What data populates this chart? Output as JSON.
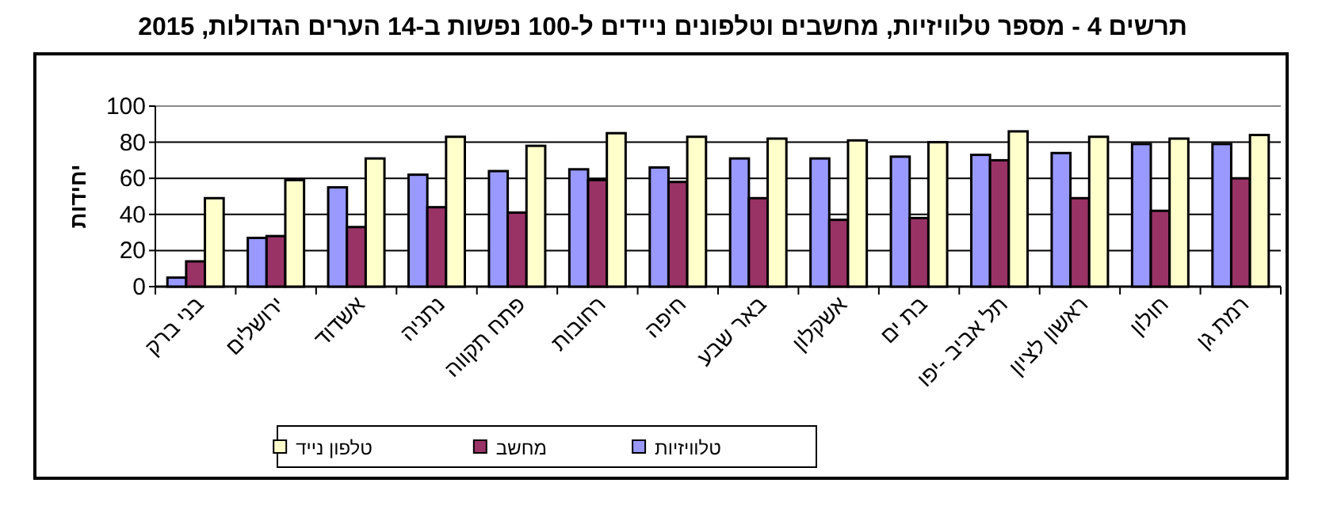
{
  "chart_data": {
    "type": "bar",
    "title": "תרשים 4 - מספר טלוויזיות, מחשבים וטלפונים ניידים ל-100 נפשות ב-14 הערים הגדולות, 2015",
    "ylabel": "יחידות",
    "categories": [
      "בני ברק",
      "ירושלים",
      "אשדוד",
      "נתניה",
      "פתח תקווה",
      "רחובות",
      "חיפה",
      "באר שבע",
      "אשקלון",
      "בת ים",
      "תל אביב -יפו",
      "ראשון לציון",
      "חולון",
      "רמת גן"
    ],
    "series": [
      {
        "name": "טלוויזיות",
        "color": "#9999ff",
        "values": [
          5,
          27,
          55,
          62,
          64,
          65,
          66,
          71,
          71,
          72,
          73,
          74,
          79,
          79
        ]
      },
      {
        "name": "מחשב",
        "color": "#993366",
        "values": [
          14,
          28,
          33,
          44,
          41,
          59,
          58,
          49,
          37,
          38,
          70,
          49,
          42,
          60
        ]
      },
      {
        "name": "טלפון נייד",
        "color": "#ffffcc",
        "values": [
          49,
          59,
          71,
          83,
          78,
          85,
          83,
          82,
          81,
          80,
          86,
          83,
          82,
          84
        ]
      }
    ],
    "ylim": [
      0,
      100
    ],
    "yticks": [
      0,
      20,
      40,
      60,
      80,
      100
    ],
    "grid": "y",
    "legend": "bottom"
  }
}
